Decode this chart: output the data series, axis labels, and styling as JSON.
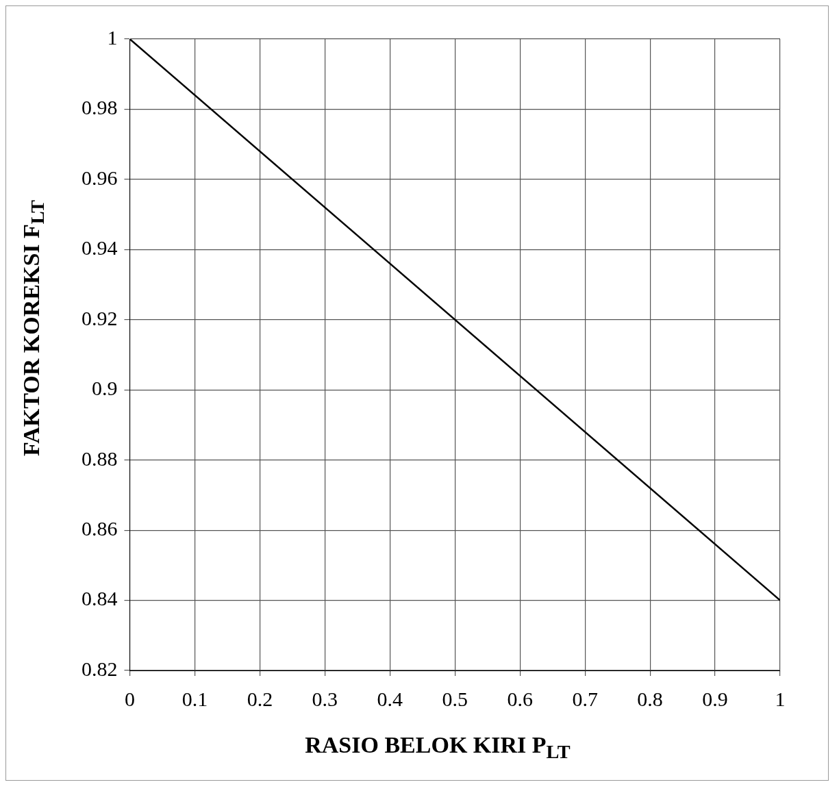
{
  "chart_data": {
    "type": "line",
    "xlabel": "RASIO BELOK KIRI P$_{LT}$",
    "ylabel": "FAKTOR KOREKSI F$_{LT}$",
    "x": [
      0,
      1
    ],
    "series": [
      {
        "color": "#000000",
        "values": [
          1,
          0.84
        ]
      }
    ],
    "xlim": [
      0,
      1
    ],
    "xticks": [
      0,
      0.1,
      0.2,
      0.3,
      0.4,
      0.5,
      0.6,
      0.7,
      0.8,
      0.9,
      1
    ],
    "ylim": [
      0.82,
      1
    ],
    "yticks": [
      0.82,
      0.84,
      0.86,
      0.88,
      0.9,
      0.92,
      0.94,
      0.96,
      0.98,
      1
    ],
    "grid": true,
    "legend": false,
    "marker": "none",
    "line_style": "solid"
  }
}
